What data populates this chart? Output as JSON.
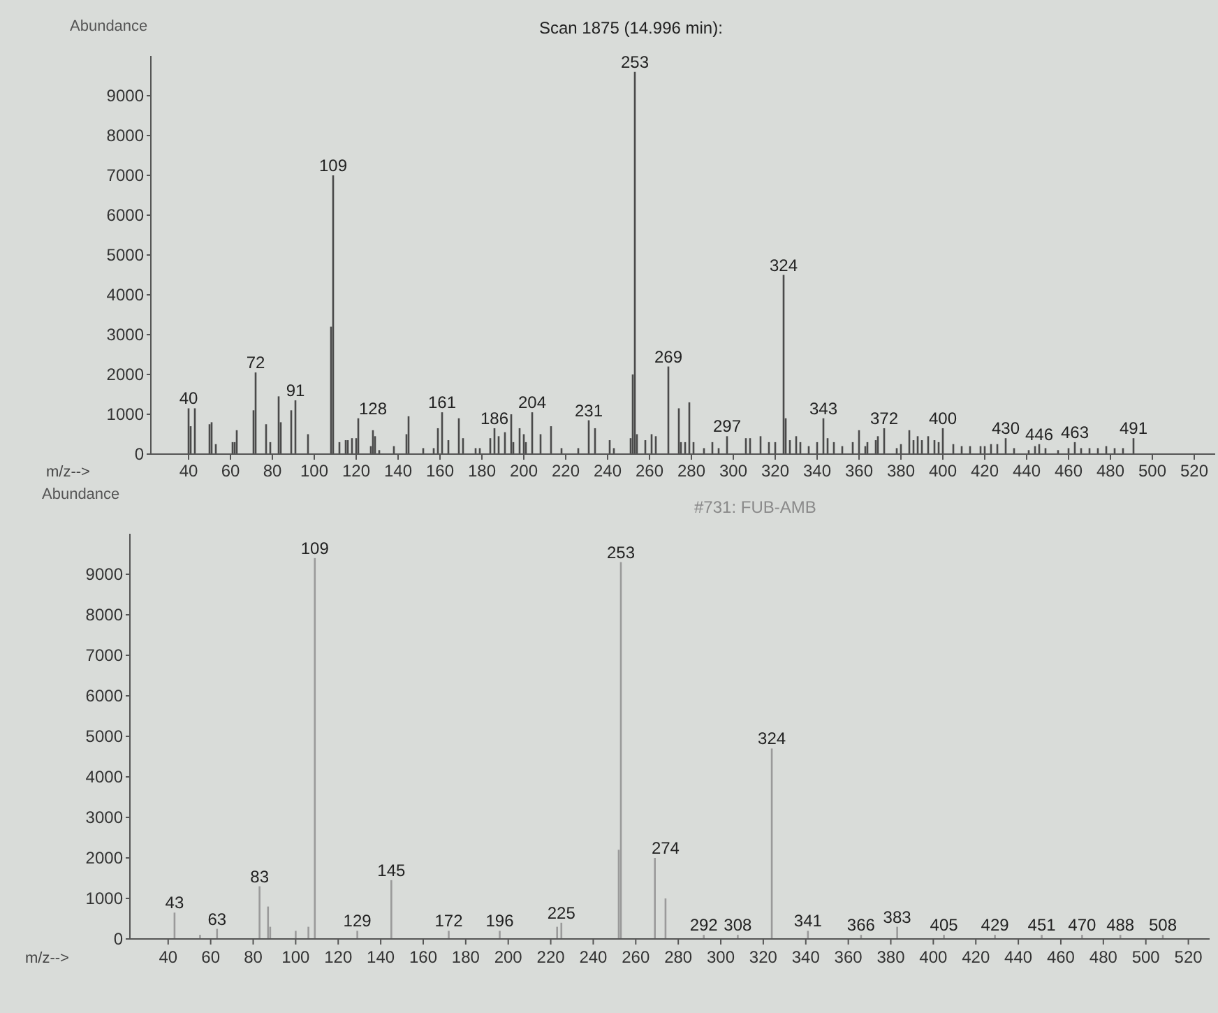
{
  "chart_data": [
    {
      "type": "bar",
      "title": "Scan 1875 (14.996 min):",
      "xlabel": "m/z-->",
      "ylabel": "Abundance",
      "color": "#4a4a4a",
      "x": [
        40,
        41,
        43,
        50,
        51,
        53,
        61,
        62,
        63,
        71,
        72,
        77,
        79,
        83,
        84,
        89,
        91,
        97,
        108,
        109,
        112,
        115,
        116,
        118,
        120,
        121,
        127,
        128,
        129,
        131,
        138,
        144,
        145,
        152,
        157,
        159,
        161,
        164,
        169,
        171,
        177,
        179,
        184,
        186,
        188,
        191,
        194,
        195,
        198,
        200,
        201,
        204,
        208,
        213,
        218,
        226,
        231,
        234,
        241,
        243,
        251,
        252,
        253,
        254,
        258,
        261,
        263,
        269,
        274,
        275,
        277,
        279,
        281,
        286,
        290,
        293,
        297,
        306,
        308,
        313,
        317,
        320,
        324,
        325,
        327,
        330,
        332,
        336,
        340,
        343,
        345,
        348,
        352,
        357,
        360,
        363,
        364,
        368,
        369,
        372,
        378,
        380,
        384,
        386,
        388,
        390,
        393,
        396,
        398,
        400,
        405,
        409,
        413,
        418,
        420,
        423,
        426,
        430,
        434,
        441,
        444,
        446,
        449,
        455,
        460,
        463,
        466,
        470,
        474,
        478,
        482,
        486,
        491
      ],
      "values": [
        1150,
        700,
        1150,
        750,
        800,
        250,
        300,
        300,
        600,
        1100,
        2050,
        750,
        300,
        1450,
        800,
        1100,
        1350,
        500,
        3200,
        7000,
        300,
        350,
        350,
        400,
        400,
        900,
        200,
        600,
        450,
        100,
        200,
        500,
        950,
        150,
        150,
        650,
        1050,
        350,
        900,
        400,
        150,
        150,
        400,
        650,
        450,
        550,
        1000,
        300,
        650,
        500,
        300,
        1050,
        500,
        700,
        150,
        150,
        850,
        650,
        350,
        150,
        400,
        2000,
        9600,
        500,
        350,
        500,
        450,
        2200,
        1150,
        300,
        300,
        1300,
        300,
        150,
        300,
        150,
        450,
        400,
        400,
        450,
        300,
        300,
        4500,
        900,
        350,
        450,
        300,
        200,
        300,
        900,
        400,
        300,
        200,
        300,
        600,
        200,
        300,
        350,
        450,
        650,
        150,
        250,
        600,
        350,
        450,
        350,
        450,
        350,
        300,
        650,
        250,
        200,
        200,
        200,
        200,
        250,
        250,
        400,
        150,
        100,
        200,
        250,
        150,
        100,
        150,
        300,
        150,
        150,
        150,
        200,
        150,
        150,
        400
      ],
      "xlim": [
        22,
        530
      ],
      "xticks": [
        40,
        60,
        80,
        100,
        120,
        140,
        160,
        180,
        200,
        220,
        240,
        260,
        280,
        300,
        320,
        340,
        360,
        380,
        400,
        420,
        440,
        460,
        480,
        500,
        520
      ],
      "ylim": [
        0,
        10000
      ],
      "yticks": [
        0,
        1000,
        2000,
        3000,
        4000,
        5000,
        6000,
        7000,
        8000,
        9000
      ],
      "annotations": [
        {
          "text": "40",
          "x": 40,
          "y": 1150
        },
        {
          "text": "72",
          "x": 72,
          "y": 2050
        },
        {
          "text": "91",
          "x": 91,
          "y": 1350
        },
        {
          "text": "109",
          "x": 109,
          "y": 7000
        },
        {
          "text": "128",
          "x": 128,
          "y": 600
        },
        {
          "text": "161",
          "x": 161,
          "y": 1050
        },
        {
          "text": "186",
          "x": 186,
          "y": 650
        },
        {
          "text": "204",
          "x": 204,
          "y": 1050
        },
        {
          "text": "231",
          "x": 231,
          "y": 850
        },
        {
          "text": "253",
          "x": 253,
          "y": 9600
        },
        {
          "text": "269",
          "x": 269,
          "y": 2200
        },
        {
          "text": "297",
          "x": 297,
          "y": 450
        },
        {
          "text": "324",
          "x": 324,
          "y": 4500
        },
        {
          "text": "343",
          "x": 343,
          "y": 900
        },
        {
          "text": "372",
          "x": 372,
          "y": 650
        },
        {
          "text": "400",
          "x": 400,
          "y": 650
        },
        {
          "text": "430",
          "x": 430,
          "y": 400
        },
        {
          "text": "446",
          "x": 446,
          "y": 250
        },
        {
          "text": "463",
          "x": 463,
          "y": 300
        },
        {
          "text": "491",
          "x": 491,
          "y": 400
        }
      ]
    },
    {
      "type": "bar",
      "title": "#731: FUB-AMB",
      "xlabel": "m/z-->",
      "ylabel": "Abundance",
      "color": "#9a9a9a",
      "x": [
        43,
        55,
        63,
        83,
        87,
        88,
        100,
        106,
        109,
        129,
        145,
        172,
        196,
        223,
        225,
        252,
        253,
        269,
        274,
        292,
        308,
        324,
        341,
        366,
        383,
        405,
        429,
        451,
        470,
        488,
        508
      ],
      "values": [
        650,
        100,
        250,
        1300,
        800,
        300,
        200,
        300,
        9400,
        200,
        1450,
        200,
        200,
        300,
        400,
        2200,
        9300,
        2000,
        1000,
        100,
        100,
        4700,
        200,
        100,
        300,
        100,
        100,
        100,
        100,
        100,
        100
      ],
      "xlim": [
        22,
        530
      ],
      "xticks": [
        40,
        60,
        80,
        100,
        120,
        140,
        160,
        180,
        200,
        220,
        240,
        260,
        280,
        300,
        320,
        340,
        360,
        380,
        400,
        420,
        440,
        460,
        480,
        500,
        520
      ],
      "ylim": [
        0,
        10000
      ],
      "yticks": [
        0,
        1000,
        2000,
        3000,
        4000,
        5000,
        6000,
        7000,
        8000,
        9000
      ],
      "annotations": [
        {
          "text": "43",
          "x": 43,
          "y": 650
        },
        {
          "text": "63",
          "x": 63,
          "y": 250
        },
        {
          "text": "83",
          "x": 83,
          "y": 1300
        },
        {
          "text": "109",
          "x": 109,
          "y": 9400
        },
        {
          "text": "129",
          "x": 129,
          "y": 200
        },
        {
          "text": "145",
          "x": 145,
          "y": 1450
        },
        {
          "text": "172",
          "x": 172,
          "y": 200
        },
        {
          "text": "196",
          "x": 196,
          "y": 200
        },
        {
          "text": "225",
          "x": 225,
          "y": 400
        },
        {
          "text": "253",
          "x": 253,
          "y": 9300
        },
        {
          "text": "274",
          "x": 274,
          "y": 1000
        },
        {
          "text": "292",
          "x": 292,
          "y": 100
        },
        {
          "text": "308",
          "x": 308,
          "y": 100
        },
        {
          "text": "324",
          "x": 324,
          "y": 4700
        },
        {
          "text": "341",
          "x": 341,
          "y": 200
        },
        {
          "text": "366",
          "x": 366,
          "y": 100
        },
        {
          "text": "383",
          "x": 383,
          "y": 300
        },
        {
          "text": "405",
          "x": 405,
          "y": 100
        },
        {
          "text": "429",
          "x": 429,
          "y": 100
        },
        {
          "text": "451",
          "x": 451,
          "y": 100
        },
        {
          "text": "470",
          "x": 470,
          "y": 100
        },
        {
          "text": "488",
          "x": 488,
          "y": 100
        },
        {
          "text": "508",
          "x": 508,
          "y": 100
        }
      ]
    }
  ]
}
